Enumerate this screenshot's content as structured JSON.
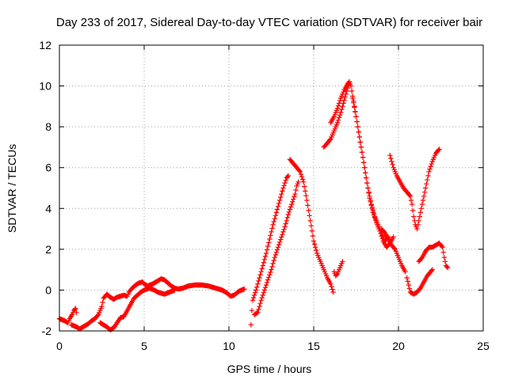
{
  "chart_data": {
    "type": "scatter",
    "title": "Day 233 of 2017, Sidereal Day-to-day VTEC variation (SDTVAR) for receiver bair",
    "xlabel": "GPS time / hours",
    "ylabel": "SDTVAR / TECUs",
    "xlim": [
      0,
      25
    ],
    "ylim": [
      -2,
      12
    ],
    "x_ticks": [
      0,
      5,
      10,
      15,
      20,
      25
    ],
    "y_ticks": [
      -2,
      0,
      2,
      4,
      6,
      8,
      10,
      12
    ],
    "grid": true,
    "marker": "+",
    "color": "#ff0000",
    "tracks": [
      {
        "points": [
          [
            0.0,
            -1.4
          ],
          [
            0.3,
            -1.5
          ],
          [
            0.5,
            -1.6
          ],
          [
            0.6,
            -1.4
          ],
          [
            0.75,
            -1.2
          ],
          [
            0.85,
            -1.0
          ],
          [
            0.95,
            -0.9
          ],
          [
            1.0,
            -1.1
          ]
        ]
      },
      {
        "points": [
          [
            0.7,
            -1.7
          ],
          [
            1.0,
            -1.8
          ],
          [
            1.2,
            -1.9
          ],
          [
            1.5,
            -1.75
          ],
          [
            1.7,
            -1.65
          ],
          [
            1.9,
            -1.5
          ],
          [
            2.1,
            -1.4
          ],
          [
            2.3,
            -1.2
          ],
          [
            2.5,
            -0.8
          ],
          [
            2.6,
            -0.4
          ],
          [
            2.8,
            -0.2
          ],
          [
            3.0,
            -0.35
          ],
          [
            3.2,
            -0.45
          ],
          [
            3.4,
            -0.35
          ],
          [
            3.6,
            -0.3
          ],
          [
            3.8,
            -0.25
          ],
          [
            4.0,
            -0.3
          ],
          [
            4.1,
            -0.1
          ],
          [
            4.3,
            0.1
          ],
          [
            4.5,
            0.25
          ],
          [
            4.7,
            0.35
          ],
          [
            4.9,
            0.4
          ],
          [
            5.0,
            0.3
          ],
          [
            5.2,
            0.2
          ],
          [
            5.5,
            0.3
          ],
          [
            5.8,
            0.45
          ],
          [
            6.0,
            0.55
          ],
          [
            6.2,
            0.5
          ],
          [
            6.4,
            0.35
          ],
          [
            6.6,
            0.2
          ],
          [
            6.8,
            0.1
          ],
          [
            7.0,
            0.05
          ],
          [
            7.3,
            0.1
          ],
          [
            7.6,
            0.2
          ],
          [
            8.0,
            0.25
          ],
          [
            8.4,
            0.25
          ],
          [
            8.8,
            0.2
          ],
          [
            9.2,
            0.1
          ],
          [
            9.6,
            0.0
          ],
          [
            9.9,
            -0.15
          ],
          [
            10.1,
            -0.3
          ],
          [
            10.3,
            -0.25
          ],
          [
            10.6,
            -0.05
          ],
          [
            10.9,
            0.05
          ]
        ]
      },
      {
        "points": [
          [
            2.4,
            -1.6
          ],
          [
            2.6,
            -1.7
          ],
          [
            2.8,
            -1.8
          ],
          [
            3.0,
            -1.95
          ],
          [
            3.2,
            -1.85
          ],
          [
            3.4,
            -1.6
          ],
          [
            3.6,
            -1.35
          ],
          [
            3.8,
            -1.3
          ],
          [
            4.0,
            -1.0
          ],
          [
            4.2,
            -0.7
          ],
          [
            4.4,
            -0.4
          ],
          [
            4.6,
            -0.25
          ],
          [
            4.8,
            -0.1
          ],
          [
            5.0,
            0.0
          ],
          [
            5.3,
            0.1
          ],
          [
            5.6,
            0.0
          ],
          [
            5.8,
            -0.1
          ],
          [
            6.0,
            -0.15
          ],
          [
            6.2,
            -0.2
          ],
          [
            6.5,
            -0.1
          ],
          [
            6.8,
            0.0
          ]
        ]
      },
      {
        "points": [
          [
            11.3,
            -1.7
          ],
          [
            11.35,
            -1.0
          ],
          [
            11.4,
            -0.5
          ],
          [
            11.6,
            0.0
          ],
          [
            11.8,
            0.6
          ],
          [
            12.0,
            1.2
          ],
          [
            12.2,
            1.8
          ],
          [
            12.4,
            2.5
          ],
          [
            12.6,
            3.2
          ],
          [
            12.8,
            3.8
          ],
          [
            13.0,
            4.4
          ],
          [
            13.2,
            5.0
          ],
          [
            13.4,
            5.5
          ],
          [
            13.5,
            5.6
          ]
        ]
      },
      {
        "points": [
          [
            11.5,
            -1.2
          ],
          [
            11.7,
            -1.1
          ],
          [
            11.9,
            -0.5
          ],
          [
            12.1,
            0.0
          ],
          [
            12.3,
            0.5
          ],
          [
            12.5,
            1.0
          ],
          [
            12.7,
            1.6
          ],
          [
            12.9,
            2.1
          ],
          [
            13.1,
            2.6
          ],
          [
            13.3,
            3.1
          ],
          [
            13.5,
            3.7
          ],
          [
            13.7,
            4.2
          ],
          [
            13.9,
            4.7
          ],
          [
            14.0,
            5.1
          ],
          [
            14.1,
            5.3
          ]
        ]
      },
      {
        "points": [
          [
            13.6,
            6.4
          ],
          [
            13.8,
            6.2
          ],
          [
            14.0,
            6.0
          ],
          [
            14.2,
            5.8
          ],
          [
            14.4,
            5.3
          ],
          [
            14.6,
            4.4
          ],
          [
            14.8,
            3.4
          ],
          [
            15.0,
            2.4
          ],
          [
            15.2,
            1.8
          ],
          [
            15.4,
            1.4
          ],
          [
            15.6,
            1.0
          ],
          [
            15.8,
            0.6
          ],
          [
            16.0,
            0.3
          ],
          [
            16.15,
            -0.1
          ]
        ]
      },
      {
        "points": [
          [
            16.2,
            0.9
          ],
          [
            16.3,
            0.7
          ],
          [
            16.4,
            0.8
          ],
          [
            16.5,
            1.0
          ],
          [
            16.6,
            1.2
          ],
          [
            16.7,
            1.4
          ]
        ]
      },
      {
        "points": [
          [
            15.6,
            7.0
          ],
          [
            15.8,
            7.2
          ],
          [
            16.0,
            7.4
          ],
          [
            16.2,
            7.8
          ],
          [
            16.4,
            8.2
          ],
          [
            16.6,
            8.7
          ],
          [
            16.8,
            9.3
          ],
          [
            17.0,
            9.9
          ],
          [
            17.1,
            10.2
          ],
          [
            17.2,
            10.0
          ],
          [
            17.3,
            9.5
          ],
          [
            17.4,
            9.0
          ],
          [
            17.6,
            8.0
          ],
          [
            17.8,
            7.0
          ],
          [
            18.0,
            6.0
          ],
          [
            18.2,
            5.0
          ],
          [
            18.4,
            4.2
          ],
          [
            18.6,
            3.6
          ],
          [
            18.8,
            3.2
          ],
          [
            19.0,
            2.8
          ],
          [
            19.2,
            2.4
          ],
          [
            19.4,
            2.6
          ]
        ]
      },
      {
        "points": [
          [
            16.0,
            8.2
          ],
          [
            16.2,
            8.5
          ],
          [
            16.4,
            8.9
          ],
          [
            16.6,
            9.4
          ],
          [
            16.8,
            9.8
          ],
          [
            17.0,
            10.1
          ],
          [
            17.1,
            10.2
          ]
        ]
      },
      {
        "points": [
          [
            17.3,
            9.4
          ],
          [
            17.5,
            8.5
          ],
          [
            17.7,
            7.5
          ],
          [
            17.9,
            6.5
          ],
          [
            18.1,
            5.5
          ],
          [
            18.3,
            4.5
          ],
          [
            18.5,
            3.8
          ],
          [
            18.7,
            3.3
          ],
          [
            18.9,
            2.9
          ],
          [
            19.1,
            2.4
          ],
          [
            19.3,
            2.1
          ],
          [
            19.5,
            2.3
          ],
          [
            19.7,
            2.6
          ]
        ]
      },
      {
        "points": [
          [
            19.0,
            3.0
          ],
          [
            19.2,
            2.8
          ],
          [
            19.4,
            2.5
          ],
          [
            19.6,
            2.2
          ],
          [
            19.8,
            2.0
          ],
          [
            20.0,
            1.6
          ],
          [
            20.2,
            1.2
          ],
          [
            20.4,
            0.9
          ]
        ]
      },
      {
        "points": [
          [
            19.5,
            6.6
          ],
          [
            19.7,
            6.0
          ],
          [
            19.9,
            5.6
          ],
          [
            20.1,
            5.3
          ],
          [
            20.3,
            5.0
          ],
          [
            20.5,
            4.8
          ],
          [
            20.7,
            4.6
          ],
          [
            20.8,
            4.2
          ],
          [
            20.9,
            3.6
          ],
          [
            21.0,
            3.2
          ],
          [
            21.1,
            3.0
          ],
          [
            21.2,
            3.4
          ],
          [
            21.4,
            4.2
          ],
          [
            21.6,
            5.0
          ],
          [
            21.8,
            5.8
          ],
          [
            22.0,
            6.3
          ],
          [
            22.2,
            6.7
          ],
          [
            22.4,
            6.9
          ]
        ]
      },
      {
        "points": [
          [
            20.5,
            0.6
          ],
          [
            20.7,
            -0.1
          ],
          [
            20.9,
            -0.2
          ],
          [
            21.1,
            -0.1
          ],
          [
            21.3,
            0.1
          ],
          [
            21.5,
            0.4
          ],
          [
            21.7,
            0.7
          ],
          [
            21.9,
            0.9
          ],
          [
            22.0,
            1.0
          ]
        ]
      },
      {
        "points": [
          [
            21.2,
            1.4
          ],
          [
            21.4,
            1.6
          ],
          [
            21.6,
            1.9
          ],
          [
            21.8,
            2.1
          ],
          [
            22.0,
            2.1
          ],
          [
            22.2,
            2.2
          ],
          [
            22.4,
            2.3
          ],
          [
            22.6,
            2.1
          ],
          [
            22.7,
            1.6
          ],
          [
            22.8,
            1.2
          ],
          [
            22.9,
            1.1
          ]
        ]
      }
    ]
  }
}
